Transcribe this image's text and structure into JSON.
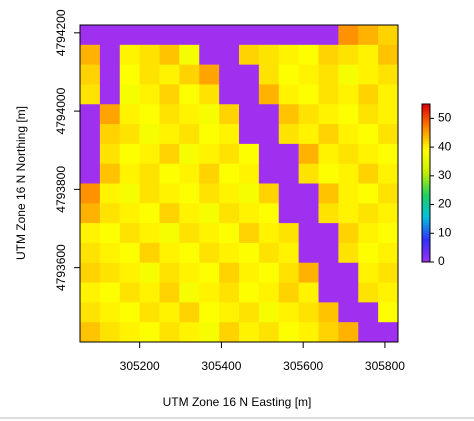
{
  "chart_data": {
    "type": "heatmap",
    "xlabel": "UTM Zone 16 N Easting [m]",
    "ylabel": "UTM Zone 16 N Northing [m]",
    "xlim": [
      305054,
      305832
    ],
    "xticks": [
      305200,
      305400,
      305600,
      305800
    ],
    "ylim": [
      4793410,
      4794220
    ],
    "yticks": [
      4793600,
      4793800,
      4794000,
      4794200
    ],
    "zlim": [
      0,
      55
    ],
    "zticks": [
      0,
      10,
      20,
      30,
      40,
      50
    ],
    "colorscale": [
      "#a030f0",
      "#3030ff",
      "#00c0e0",
      "#20d060",
      "#c8f000",
      "#ffff00",
      "#ff8000",
      "#e00000"
    ],
    "z": [
      [
        0,
        0,
        0,
        0,
        0,
        0,
        0,
        0,
        0,
        0,
        0,
        0,
        0,
        46,
        44,
        42
      ],
      [
        44,
        0,
        40,
        41,
        43,
        38,
        0,
        0,
        42,
        41,
        40,
        39,
        42,
        41,
        40,
        43
      ],
      [
        42,
        0,
        39,
        41,
        40,
        42,
        45,
        0,
        0,
        41,
        39,
        40,
        41,
        38,
        40,
        41
      ],
      [
        41,
        0,
        38,
        40,
        42,
        39,
        41,
        0,
        0,
        44,
        40,
        39,
        41,
        40,
        42,
        40
      ],
      [
        0,
        45,
        40,
        39,
        41,
        40,
        38,
        42,
        0,
        0,
        43,
        41,
        40,
        39,
        41,
        40
      ],
      [
        0,
        42,
        41,
        38,
        40,
        41,
        39,
        40,
        0,
        0,
        41,
        40,
        42,
        40,
        39,
        41
      ],
      [
        0,
        41,
        39,
        40,
        42,
        38,
        40,
        41,
        39,
        0,
        0,
        44,
        40,
        41,
        40,
        39
      ],
      [
        0,
        43,
        40,
        41,
        39,
        40,
        42,
        39,
        40,
        0,
        0,
        41,
        39,
        40,
        42,
        40
      ],
      [
        46,
        40,
        38,
        41,
        40,
        39,
        41,
        40,
        38,
        42,
        0,
        0,
        43,
        40,
        39,
        41
      ],
      [
        44,
        41,
        40,
        39,
        42,
        40,
        38,
        41,
        40,
        39,
        0,
        0,
        41,
        40,
        41,
        40
      ],
      [
        40,
        39,
        41,
        40,
        38,
        41,
        40,
        39,
        42,
        40,
        41,
        0,
        0,
        42,
        40,
        39
      ],
      [
        41,
        40,
        39,
        42,
        40,
        39,
        41,
        40,
        39,
        41,
        40,
        0,
        0,
        41,
        39,
        40
      ],
      [
        42,
        41,
        40,
        38,
        41,
        40,
        39,
        42,
        40,
        39,
        41,
        44,
        0,
        0,
        40,
        41
      ],
      [
        40,
        39,
        41,
        40,
        42,
        38,
        40,
        41,
        39,
        40,
        42,
        40,
        0,
        0,
        41,
        40
      ],
      [
        41,
        40,
        39,
        41,
        40,
        42,
        39,
        40,
        41,
        38,
        40,
        41,
        43,
        0,
        0,
        39
      ],
      [
        43,
        41,
        40,
        39,
        41,
        40,
        38,
        42,
        40,
        41,
        39,
        40,
        42,
        44,
        0,
        0
      ]
    ]
  }
}
